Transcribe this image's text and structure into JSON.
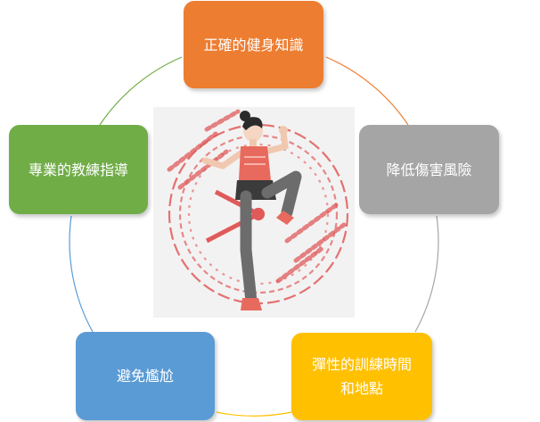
{
  "diagram": {
    "type": "cycle",
    "nodes": [
      {
        "id": "top",
        "label_lines": [
          "正確的健身知識"
        ],
        "color": "#ed7d31"
      },
      {
        "id": "right",
        "label_lines": [
          "降低傷害風險"
        ],
        "color": "#a5a5a5"
      },
      {
        "id": "bottom-right",
        "label_lines": [
          "彈性的訓練時間",
          "和地點"
        ],
        "color": "#ffc000"
      },
      {
        "id": "bottom-left",
        "label_lines": [
          "避免尷尬"
        ],
        "color": "#5b9bd5"
      },
      {
        "id": "left",
        "label_lines": [
          "專業的教練指導"
        ],
        "color": "#70ad47"
      }
    ],
    "connector_colors": [
      "#ed7d31",
      "#a5a5a5",
      "#ffc000",
      "#5b9bd5",
      "#70ad47"
    ],
    "illustration": {
      "icon": "fitness-woman-clock-icon",
      "accent": "#e05a5a"
    }
  }
}
